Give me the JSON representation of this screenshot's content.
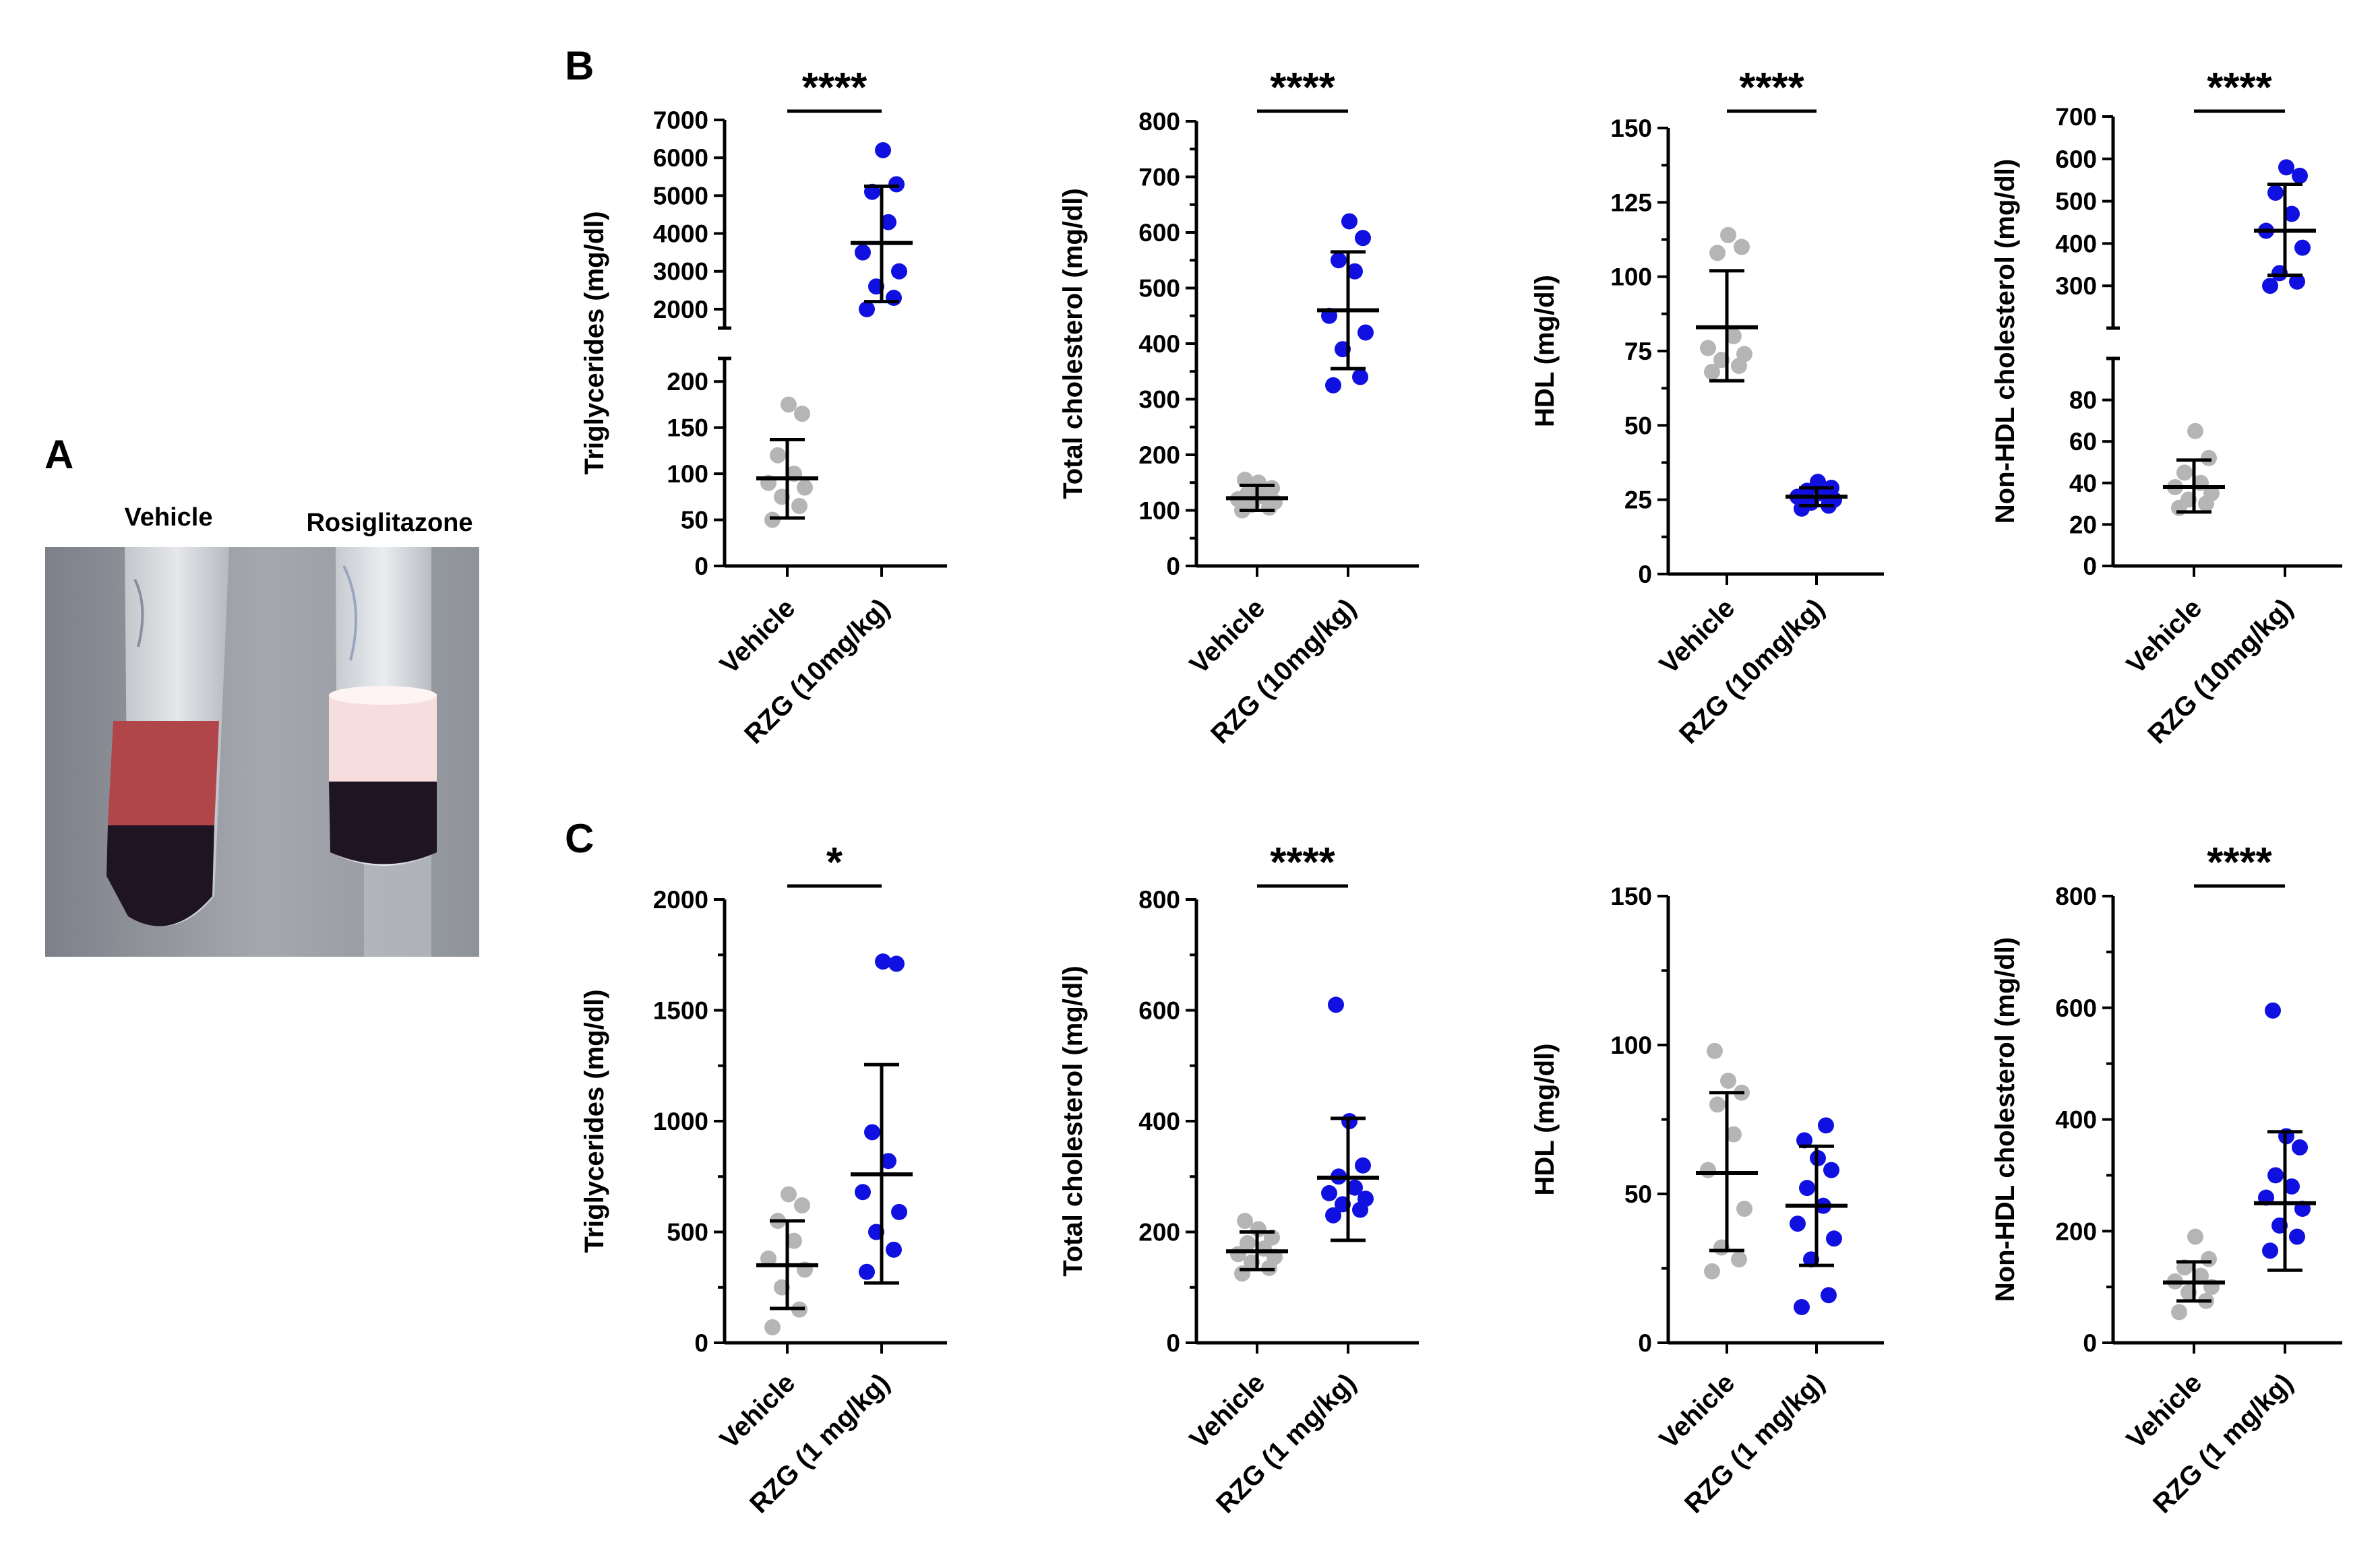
{
  "panels": {
    "a": "A",
    "b": "B",
    "c": "C"
  },
  "photo": {
    "labels": [
      "Vehicle",
      "Rosiglitazone"
    ],
    "colors": {
      "plasma_red": "#b0454a",
      "lipid_white": "#f7dede",
      "cells": "#1e1422",
      "backdrop": "#9aa0a8"
    }
  },
  "colors": {
    "vehicle": "#b5b5b5",
    "treated": "#1010e0",
    "axis": "#000000"
  },
  "chart_data": [
    {
      "panel": "B",
      "type": "scatter",
      "ylabel": "Triglycerides (mg/dl)",
      "categories": [
        "Vehicle",
        "RZG (10mg/kg)"
      ],
      "significance": "****",
      "broken_axis": {
        "lower": [
          0,
          225
        ],
        "upper": [
          1500,
          7000
        ]
      },
      "lower_ticks": [
        0,
        50,
        100,
        150,
        200
      ],
      "upper_ticks": [
        2000,
        3000,
        4000,
        5000,
        6000,
        7000
      ],
      "series": [
        {
          "name": "Vehicle",
          "values": [
            50,
            65,
            75,
            85,
            90,
            100,
            120,
            165,
            175
          ],
          "mean": 95,
          "sd_low": 52,
          "sd_high": 137
        },
        {
          "name": "RZG (10mg/kg)",
          "values": [
            2000,
            2300,
            2600,
            3000,
            3500,
            4300,
            5100,
            5300,
            6200
          ],
          "mean": 3750,
          "sd_low": 2200,
          "sd_high": 5250
        }
      ]
    },
    {
      "panel": "B",
      "type": "scatter",
      "ylabel": "Total cholesterol (mg/dl)",
      "categories": [
        "Vehicle",
        "RZG (10mg/kg)"
      ],
      "significance": "****",
      "ylim": [
        0,
        800
      ],
      "ticks": [
        0,
        100,
        200,
        300,
        400,
        500,
        600,
        700,
        800
      ],
      "series": [
        {
          "name": "Vehicle",
          "values": [
            100,
            105,
            110,
            115,
            120,
            125,
            130,
            140,
            150,
            155
          ],
          "mean": 122,
          "sd_low": 100,
          "sd_high": 145
        },
        {
          "name": "RZG (10mg/kg)",
          "values": [
            325,
            340,
            390,
            420,
            450,
            530,
            550,
            590,
            620
          ],
          "mean": 460,
          "sd_low": 355,
          "sd_high": 565
        }
      ]
    },
    {
      "panel": "B",
      "type": "scatter",
      "ylabel": "HDL (mg/dl)",
      "categories": [
        "Vehicle",
        "RZG (10mg/kg)"
      ],
      "significance": "****",
      "ylim": [
        0,
        150
      ],
      "ticks": [
        0,
        25,
        50,
        75,
        100,
        125,
        150
      ],
      "series": [
        {
          "name": "Vehicle",
          "values": [
            68,
            70,
            72,
            74,
            76,
            80,
            108,
            110,
            114
          ],
          "mean": 83,
          "sd_low": 65,
          "sd_high": 102
        },
        {
          "name": "RZG (10mg/kg)",
          "values": [
            22,
            23,
            24,
            25,
            26,
            27,
            28,
            29,
            31
          ],
          "mean": 26,
          "sd_low": 23,
          "sd_high": 29
        }
      ]
    },
    {
      "panel": "B",
      "type": "scatter",
      "ylabel": "Non-HDL cholesterol (mg/dl)",
      "categories": [
        "Vehicle",
        "RZG (10mg/kg)"
      ],
      "significance": "****",
      "broken_axis": {
        "lower": [
          0,
          100
        ],
        "upper": [
          200,
          700
        ]
      },
      "lower_ticks": [
        0,
        20,
        40,
        60,
        80
      ],
      "upper_ticks": [
        300,
        400,
        500,
        600,
        700
      ],
      "series": [
        {
          "name": "Vehicle",
          "values": [
            28,
            30,
            32,
            35,
            38,
            40,
            45,
            52,
            65
          ],
          "mean": 38,
          "sd_low": 26,
          "sd_high": 51
        },
        {
          "name": "RZG (10mg/kg)",
          "values": [
            300,
            310,
            330,
            390,
            430,
            470,
            520,
            560,
            580
          ],
          "mean": 430,
          "sd_low": 325,
          "sd_high": 540
        }
      ]
    },
    {
      "panel": "C",
      "type": "scatter",
      "ylabel": "Triglycerides (mg/dl)",
      "categories": [
        "Vehicle",
        "RZG (1 mg/kg)"
      ],
      "significance": "*",
      "ylim": [
        0,
        2000
      ],
      "ticks": [
        0,
        500,
        1000,
        1500,
        2000
      ],
      "series": [
        {
          "name": "Vehicle",
          "values": [
            70,
            150,
            250,
            330,
            380,
            460,
            550,
            620,
            670
          ],
          "mean": 350,
          "sd_low": 155,
          "sd_high": 550
        },
        {
          "name": "RZG (1 mg/kg)",
          "values": [
            320,
            420,
            500,
            590,
            680,
            820,
            950,
            1710,
            1720
          ],
          "mean": 760,
          "sd_low": 270,
          "sd_high": 1255
        }
      ]
    },
    {
      "panel": "C",
      "type": "scatter",
      "ylabel": "Total cholesterol (mg/dl)",
      "categories": [
        "Vehicle",
        "RZG (1 mg/kg)"
      ],
      "significance": "****",
      "ylim": [
        0,
        800
      ],
      "ticks": [
        0,
        200,
        400,
        600,
        800
      ],
      "series": [
        {
          "name": "Vehicle",
          "values": [
            125,
            135,
            145,
            155,
            160,
            170,
            180,
            190,
            205,
            220
          ],
          "mean": 165,
          "sd_low": 132,
          "sd_high": 200
        },
        {
          "name": "RZG (1 mg/kg)",
          "values": [
            230,
            240,
            250,
            260,
            270,
            280,
            300,
            320,
            400,
            610
          ],
          "mean": 298,
          "sd_low": 185,
          "sd_high": 405
        }
      ]
    },
    {
      "panel": "C",
      "type": "scatter",
      "ylabel": "HDL (mg/dl)",
      "categories": [
        "Vehicle",
        "RZG (1 mg/kg)"
      ],
      "significance": "",
      "ylim": [
        0,
        150
      ],
      "ticks": [
        0,
        50,
        100,
        150
      ],
      "series": [
        {
          "name": "Vehicle",
          "values": [
            24,
            28,
            32,
            45,
            58,
            70,
            80,
            84,
            88,
            98
          ],
          "mean": 57,
          "sd_low": 31,
          "sd_high": 84
        },
        {
          "name": "RZG (1 mg/kg)",
          "values": [
            12,
            16,
            28,
            35,
            40,
            46,
            52,
            58,
            62,
            68,
            73
          ],
          "mean": 46,
          "sd_low": 26,
          "sd_high": 66
        }
      ]
    },
    {
      "panel": "C",
      "type": "scatter",
      "ylabel": "Non-HDL cholesterol (mg/dl)",
      "categories": [
        "Vehicle",
        "RZG (1 mg/kg)"
      ],
      "significance": "****",
      "ylim": [
        0,
        800
      ],
      "ticks": [
        0,
        200,
        400,
        600,
        800
      ],
      "series": [
        {
          "name": "Vehicle",
          "values": [
            55,
            75,
            90,
            100,
            110,
            120,
            135,
            150,
            190
          ],
          "mean": 108,
          "sd_low": 75,
          "sd_high": 145
        },
        {
          "name": "RZG (1 mg/kg)",
          "values": [
            165,
            190,
            210,
            240,
            260,
            280,
            300,
            350,
            370,
            595
          ],
          "mean": 250,
          "sd_low": 130,
          "sd_high": 378
        }
      ]
    }
  ]
}
